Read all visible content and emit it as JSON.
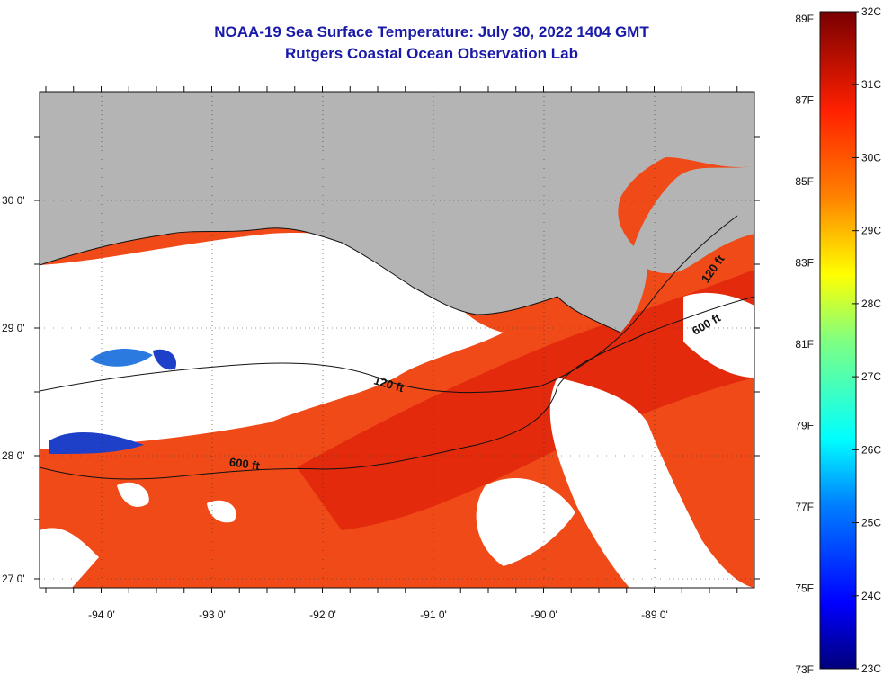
{
  "title": "NOAA-19 Sea Surface Temperature:  July 30, 2022 1404 GMT",
  "subtitle": "Rutgers Coastal Ocean Observation Lab",
  "map": {
    "lon_labels": [
      "-94 0'",
      "-93 0'",
      "-92 0'",
      "-91 0'",
      "-90 0'",
      "-89 0'"
    ],
    "lon_values": [
      -94,
      -93,
      -92,
      -91,
      -90,
      -89
    ],
    "lat_labels": [
      "30 0'",
      "29 0'",
      "28 0'",
      "27 0'"
    ],
    "lat_values": [
      30,
      29,
      28,
      27
    ],
    "lon_range": [
      -94.55,
      -88.05
    ],
    "lat_range": [
      26.9,
      30.85
    ],
    "contours": [
      {
        "label": "120 ft"
      },
      {
        "label": "600 ft"
      },
      {
        "label": "120 ft"
      },
      {
        "label": "600 ft"
      }
    ],
    "colors": {
      "land": "#b4b4b4",
      "cloud": "#ffffff",
      "warm": "#f03c14",
      "hot": "#e01e0a",
      "cool": "#1e5adc"
    }
  },
  "colorbar": {
    "fahrenheit_labels": [
      "89F",
      "87F",
      "85F",
      "83F",
      "81F",
      "79F",
      "77F",
      "75F",
      "73F"
    ],
    "celsius_labels": [
      "32C",
      "31C",
      "30C",
      "29C",
      "28C",
      "27C",
      "26C",
      "25C",
      "24C",
      "23C"
    ],
    "range_c": [
      23,
      32
    ]
  }
}
